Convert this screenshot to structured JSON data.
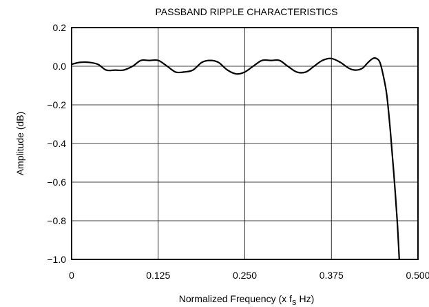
{
  "chart_data": {
    "type": "line",
    "title": "PASSBAND RIPPLE CHARACTERISTICS",
    "xlabel_main": "Normalized Frequency (x f",
    "xlabel_sub": "S",
    "xlabel_end": " Hz)",
    "ylabel": "Amplitude (dB)",
    "xlim": [
      0,
      0.5
    ],
    "ylim": [
      -1.0,
      0.2
    ],
    "x_ticks": [
      0,
      0.125,
      0.25,
      0.375,
      0.5
    ],
    "x_tick_labels": [
      "0",
      "0.125",
      "0.250",
      "0.375",
      "0.500"
    ],
    "y_ticks": [
      0.2,
      0.0,
      -0.2,
      -0.4,
      -0.6,
      -0.8,
      -1.0
    ],
    "y_tick_labels": [
      "0.2",
      "0.0",
      "−0.2",
      "−0.4",
      "−0.6",
      "−0.8",
      "−1.0"
    ],
    "grid": true,
    "series": [
      {
        "x": [
          0,
          0.012,
          0.025,
          0.038,
          0.05,
          0.063,
          0.075,
          0.088,
          0.1,
          0.112,
          0.125,
          0.138,
          0.15,
          0.162,
          0.175,
          0.188,
          0.2,
          0.212,
          0.225,
          0.238,
          0.25,
          0.262,
          0.275,
          0.288,
          0.3,
          0.312,
          0.325,
          0.338,
          0.35,
          0.362,
          0.375,
          0.388,
          0.4,
          0.41,
          0.42,
          0.428,
          0.435,
          0.44,
          0.445,
          0.45,
          0.455,
          0.46,
          0.465,
          0.47,
          0.473
        ],
        "y": [
          0.01,
          0.02,
          0.02,
          0.01,
          -0.02,
          -0.02,
          -0.02,
          0.0,
          0.03,
          0.03,
          0.03,
          0.0,
          -0.03,
          -0.03,
          -0.02,
          0.02,
          0.03,
          0.02,
          -0.02,
          -0.04,
          -0.03,
          0.0,
          0.03,
          0.03,
          0.03,
          0.0,
          -0.03,
          -0.03,
          0.0,
          0.03,
          0.04,
          0.02,
          -0.01,
          -0.02,
          -0.01,
          0.02,
          0.04,
          0.04,
          0.02,
          -0.05,
          -0.15,
          -0.33,
          -0.55,
          -0.8,
          -1.0
        ]
      }
    ]
  }
}
